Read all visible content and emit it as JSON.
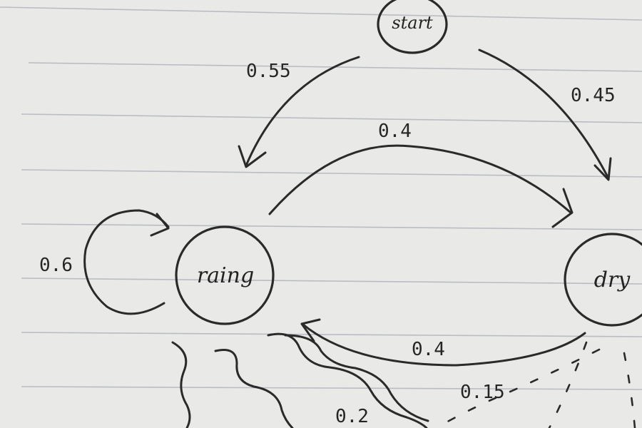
{
  "diagram": {
    "nodes": {
      "start": "start",
      "raining": "raing",
      "dry": "dry"
    },
    "edges": {
      "start_to_raining": "0.55",
      "start_to_dry": "0.45",
      "raining_to_dry": "0.4",
      "dry_to_raining": "0.4",
      "raining_self_loop": "0.6",
      "raining_emission": "0.2",
      "dry_emission": "0.15"
    }
  }
}
